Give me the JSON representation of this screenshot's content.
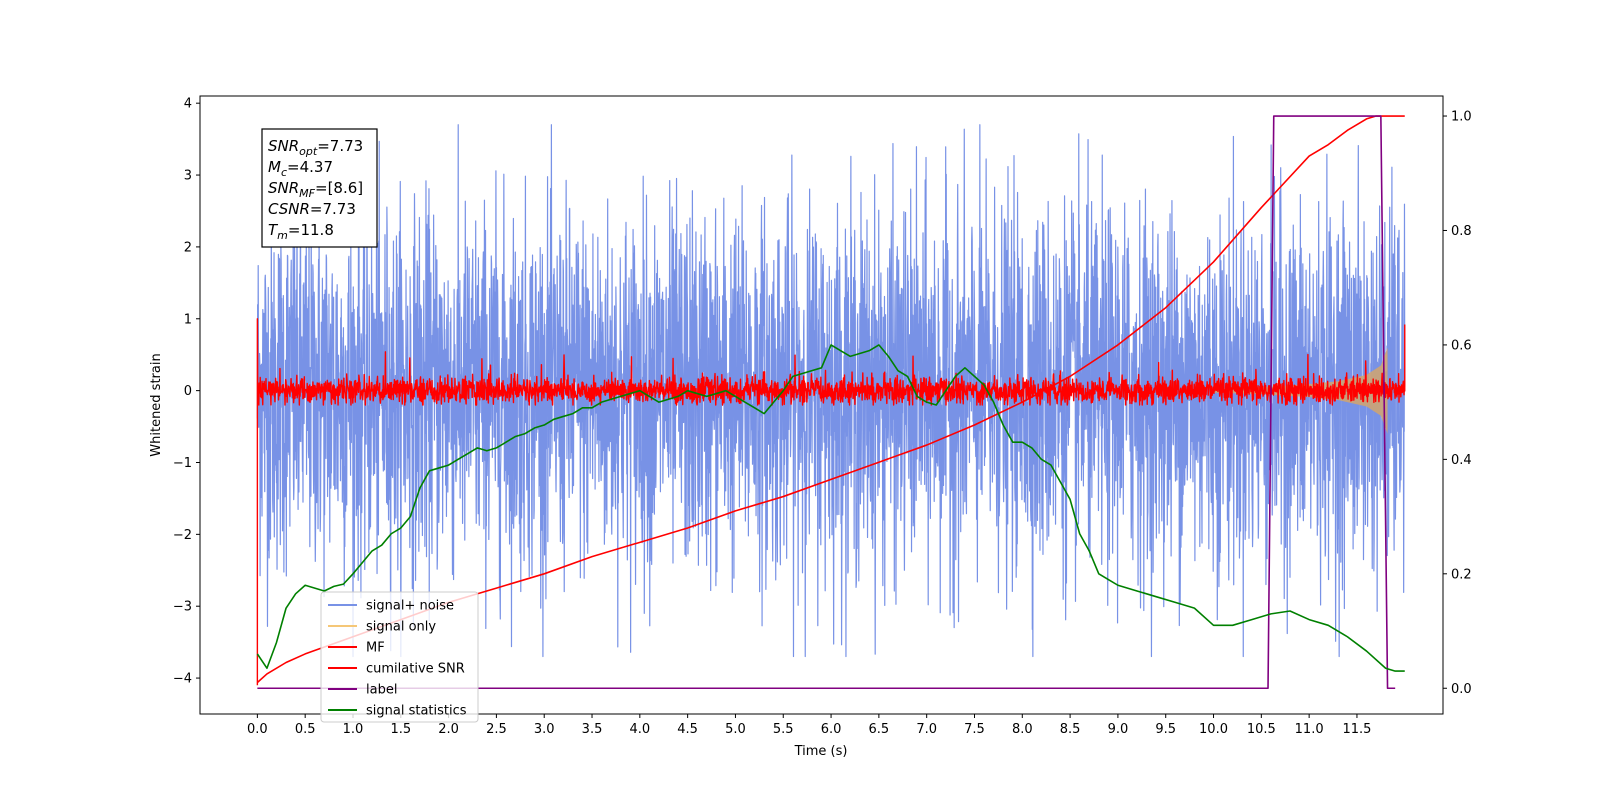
{
  "chart_data": {
    "type": "line",
    "xlabel": "Time (s)",
    "ylabel_left": "Whitened strain",
    "ylabel_right": "",
    "xlim": [
      -0.6,
      12.4
    ],
    "ylim_left": [
      -4.5,
      4.1
    ],
    "ylim_right": [
      -0.045,
      1.035
    ],
    "x_ticks": [
      "0.0",
      "0.5",
      "1.0",
      "1.5",
      "2.0",
      "2.5",
      "3.0",
      "3.5",
      "4.0",
      "4.5",
      "5.0",
      "5.5",
      "6.0",
      "6.5",
      "7.0",
      "7.5",
      "8.0",
      "8.5",
      "9.0",
      "9.5",
      "10.0",
      "10.5",
      "11.0",
      "11.5"
    ],
    "y_ticks_left": [
      "4",
      "3",
      "2",
      "1",
      "0",
      "−1",
      "−2",
      "−3",
      "−4"
    ],
    "y_ticks_right": [
      "1.0",
      "0.8",
      "0.6",
      "0.4",
      "0.2",
      "0.0"
    ],
    "info_box": [
      {
        "sym": "SNR",
        "sub": "opt",
        "val": "=7.73"
      },
      {
        "sym": "M",
        "sub": "c",
        "val": "=4.37"
      },
      {
        "sym": "SNR",
        "sub": "MF",
        "val": "=[8.6]"
      },
      {
        "sym": "CSNR",
        "sub": "",
        "val": "=7.73"
      },
      {
        "sym": "T",
        "sub": "m",
        "val": "=11.8"
      }
    ],
    "legend": {
      "placement": "lower-left",
      "entries": [
        {
          "label": "signal+ noise",
          "color": "#7892e6"
        },
        {
          "label": "signal only",
          "color": "#f5c777"
        },
        {
          "label": "MF",
          "color": "#ff0000"
        },
        {
          "label": "cumilative SNR",
          "color": "#ff0000"
        },
        {
          "label": "label",
          "color": "#800080"
        },
        {
          "label": "signal statistics",
          "color": "#008000"
        }
      ]
    },
    "series": [
      {
        "name": "signal+ noise",
        "axis": "left",
        "color": "#7892e6",
        "x_range": [
          0.0,
          12.0
        ],
        "envelope_typical": [
          -1.5,
          1.5
        ],
        "envelope_extreme": [
          -3.7,
          3.7
        ]
      },
      {
        "name": "signal only",
        "axis": "left",
        "color": "#d2a46c",
        "x": [
          10.0,
          10.5,
          11.0,
          11.3,
          11.6,
          11.75,
          11.82
        ],
        "amplitude": [
          0.03,
          0.05,
          0.09,
          0.13,
          0.22,
          0.35,
          0.6
        ]
      },
      {
        "name": "MF",
        "axis": "left",
        "color": "#ff0000",
        "x_range": [
          0.0,
          12.0
        ],
        "envelope_typical": [
          -0.15,
          0.15
        ],
        "envelope_extreme": [
          -0.2,
          0.55
        ],
        "start_spike": [
          1.0,
          -4.1
        ],
        "end_spike": 0.92
      },
      {
        "name": "cumilative SNR",
        "axis": "right",
        "color": "#ff0000",
        "x": [
          0.0,
          0.1,
          0.3,
          0.5,
          1.0,
          1.5,
          2.0,
          2.5,
          3.0,
          3.5,
          4.0,
          4.5,
          5.0,
          5.5,
          6.0,
          6.5,
          7.0,
          7.5,
          8.0,
          8.5,
          9.0,
          9.5,
          10.0,
          10.5,
          11.0,
          11.2,
          11.4,
          11.6,
          11.7,
          11.8,
          11.9,
          12.0
        ],
        "y": [
          0.01,
          0.025,
          0.045,
          0.06,
          0.09,
          0.12,
          0.15,
          0.175,
          0.2,
          0.23,
          0.255,
          0.28,
          0.31,
          0.335,
          0.365,
          0.395,
          0.425,
          0.46,
          0.5,
          0.545,
          0.6,
          0.665,
          0.745,
          0.84,
          0.93,
          0.95,
          0.975,
          0.995,
          1.0,
          1.0,
          1.0,
          1.0
        ]
      },
      {
        "name": "label",
        "axis": "right",
        "color": "#800080",
        "x": [
          0.0,
          10.57,
          10.63,
          11.75,
          11.82,
          11.9
        ],
        "y": [
          0.0,
          0.0,
          1.0,
          1.0,
          0.0,
          0.0
        ]
      },
      {
        "name": "signal statistics",
        "axis": "right",
        "color": "#008000",
        "x": [
          0.0,
          0.1,
          0.2,
          0.3,
          0.4,
          0.5,
          0.6,
          0.7,
          0.8,
          0.9,
          1.0,
          1.1,
          1.2,
          1.3,
          1.4,
          1.5,
          1.6,
          1.7,
          1.8,
          1.9,
          2.0,
          2.1,
          2.2,
          2.3,
          2.4,
          2.5,
          2.6,
          2.7,
          2.8,
          2.9,
          3.0,
          3.1,
          3.2,
          3.3,
          3.4,
          3.5,
          3.6,
          3.7,
          3.8,
          3.9,
          4.0,
          4.1,
          4.2,
          4.3,
          4.4,
          4.5,
          4.6,
          4.7,
          4.8,
          4.9,
          5.0,
          5.1,
          5.2,
          5.3,
          5.4,
          5.5,
          5.6,
          5.7,
          5.8,
          5.9,
          6.0,
          6.1,
          6.2,
          6.3,
          6.4,
          6.5,
          6.6,
          6.7,
          6.8,
          6.9,
          7.0,
          7.1,
          7.2,
          7.3,
          7.4,
          7.5,
          7.6,
          7.7,
          7.8,
          7.9,
          8.0,
          8.1,
          8.2,
          8.3,
          8.4,
          8.5,
          8.6,
          8.7,
          8.8,
          8.9,
          9.0,
          9.2,
          9.4,
          9.6,
          9.8,
          10.0,
          10.2,
          10.4,
          10.6,
          10.8,
          11.0,
          11.2,
          11.4,
          11.6,
          11.8,
          11.9,
          12.0
        ],
        "y": [
          0.06,
          0.035,
          0.08,
          0.14,
          0.165,
          0.18,
          0.175,
          0.17,
          0.178,
          0.182,
          0.2,
          0.22,
          0.24,
          0.25,
          0.27,
          0.28,
          0.3,
          0.35,
          0.38,
          0.385,
          0.39,
          0.4,
          0.41,
          0.42,
          0.415,
          0.42,
          0.43,
          0.44,
          0.445,
          0.455,
          0.46,
          0.47,
          0.475,
          0.48,
          0.49,
          0.49,
          0.5,
          0.505,
          0.51,
          0.515,
          0.52,
          0.51,
          0.5,
          0.505,
          0.51,
          0.52,
          0.515,
          0.51,
          0.515,
          0.52,
          0.51,
          0.5,
          0.49,
          0.48,
          0.5,
          0.52,
          0.545,
          0.55,
          0.555,
          0.56,
          0.6,
          0.59,
          0.58,
          0.585,
          0.59,
          0.6,
          0.58,
          0.555,
          0.545,
          0.51,
          0.5,
          0.495,
          0.52,
          0.545,
          0.56,
          0.545,
          0.53,
          0.5,
          0.46,
          0.43,
          0.43,
          0.42,
          0.4,
          0.39,
          0.36,
          0.33,
          0.27,
          0.24,
          0.2,
          0.19,
          0.18,
          0.17,
          0.16,
          0.15,
          0.14,
          0.11,
          0.11,
          0.12,
          0.13,
          0.135,
          0.12,
          0.11,
          0.09,
          0.065,
          0.035,
          0.03,
          0.03
        ]
      }
    ]
  }
}
